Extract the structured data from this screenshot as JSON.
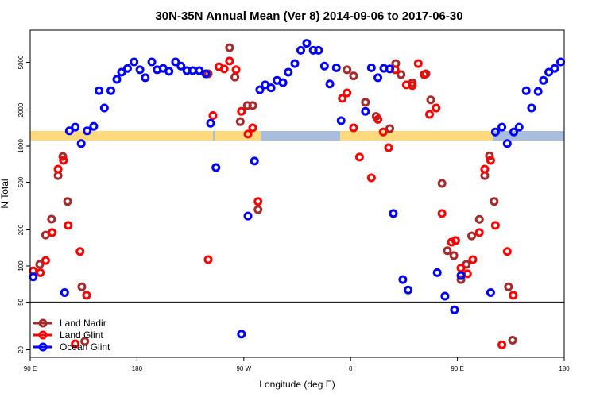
{
  "chart_data": {
    "type": "scatter",
    "title": "30N-35N Annual Mean (Ver 8)   2014-09-06 to 2017-06-30",
    "x_label": "Longitude (deg E)",
    "y_label": "N Total",
    "xlim": [
      90,
      540
    ],
    "ylim": [
      17.3,
      9270
    ],
    "log_y": true,
    "legend": "lower left",
    "xticks": [
      {
        "value": 90,
        "label": "90 E"
      },
      180,
      {
        "value": 270,
        "label": "90 W"
      },
      {
        "value": 360,
        "label": "0"
      },
      {
        "value": 450,
        "label": "90 E"
      },
      {
        "value": 540,
        "label": "180"
      }
    ],
    "yticks": [
      20,
      50,
      100,
      200,
      500,
      1000,
      2000,
      5000
    ],
    "series": [
      {
        "name": "Land Nadir",
        "color": "#a52a2a",
        "x": [
          98,
          103,
          108,
          113.5,
          117.5,
          121.5,
          133.5,
          136,
          240,
          258,
          262.5,
          267,
          273,
          277.5,
          282,
          357,
          362.5,
          372.5,
          381.5,
          393,
          398,
          402.5,
          412,
          423.5,
          427.5,
          432,
          437,
          441.5,
          447,
          453,
          457.5,
          462,
          468.5,
          473,
          477,
          481,
          493,
          496.5
        ],
        "values": [
          103,
          181,
          246,
          568,
          818,
          345,
          67,
          23.5,
          4010,
          6620,
          3760,
          1600,
          2180,
          2180,
          295,
          4330,
          3850,
          2320,
          1770,
          1400,
          4880,
          3950,
          3370,
          4010,
          2430,
          2080,
          488,
          134,
          122,
          77,
          103,
          178,
          245,
          568,
          830,
          345,
          67,
          24
        ]
      },
      {
        "name": "Land Glint",
        "color": "#ff0000",
        "x": [
          92.5,
          98.5,
          103,
          108.5,
          113.5,
          118,
          122,
          132,
          137.5,
          128,
          240,
          244,
          249,
          253.5,
          258,
          263.5,
          268,
          273.5,
          277.5,
          282,
          353,
          357,
          362.5,
          367.5,
          377.5,
          383,
          387.5,
          392,
          397.5,
          407,
          412,
          417,
          422,
          426.5,
          432,
          437,
          445,
          448.5,
          453,
          458.5,
          463,
          468.5,
          473,
          478,
          482,
          492,
          497,
          487.5
        ],
        "values": [
          91,
          88,
          111,
          190,
          643,
          760,
          218,
          132,
          57,
          22.4,
          113,
          1800,
          4590,
          4400,
          5120,
          4330,
          1950,
          1260,
          1420,
          345,
          2500,
          2780,
          1420,
          810,
          543,
          1670,
          1310,
          970,
          4330,
          3240,
          3200,
          4880,
          3950,
          1840,
          2080,
          274,
          158,
          163,
          96,
          86,
          113,
          190,
          643,
          760,
          218,
          132,
          57,
          22
        ]
      },
      {
        "name": "Ocean Glint",
        "color": "#0000ff",
        "x": [
          92.5,
          119,
          123,
          128,
          133,
          138,
          143.5,
          148,
          152.5,
          158,
          163,
          167,
          172,
          177.5,
          182.5,
          187,
          192.5,
          197,
          202,
          207,
          212.5,
          217,
          222,
          227,
          232.5,
          238,
          242,
          246.5,
          268,
          273.5,
          279,
          283.5,
          288,
          293,
          298,
          303,
          307.5,
          313,
          318,
          323,
          328.5,
          333,
          338,
          342.5,
          348,
          352,
          372.5,
          377.5,
          383,
          388,
          393,
          396,
          404,
          408.5,
          433,
          439.5,
          447.5,
          453,
          478,
          482,
          487.5,
          492,
          497.5,
          502,
          508,
          512.5,
          518,
          522.5,
          527,
          532,
          537
        ],
        "values": [
          81,
          60,
          1340,
          1440,
          1050,
          1340,
          1460,
          2900,
          2080,
          2900,
          3600,
          4130,
          4440,
          5040,
          4330,
          3720,
          5040,
          4330,
          4450,
          4200,
          5040,
          4650,
          4260,
          4260,
          4260,
          4010,
          1550,
          662,
          27,
          261,
          750,
          2950,
          3240,
          3060,
          3530,
          3380,
          4130,
          4880,
          6300,
          7200,
          6300,
          6300,
          4650,
          3300,
          4500,
          1630,
          1950,
          4500,
          3720,
          4450,
          4400,
          274,
          77,
          63,
          88,
          56,
          43,
          83,
          60,
          1310,
          1440,
          1050,
          1310,
          1440,
          2900,
          2080,
          2860,
          3530,
          4130,
          4440,
          5040
        ]
      }
    ]
  }
}
